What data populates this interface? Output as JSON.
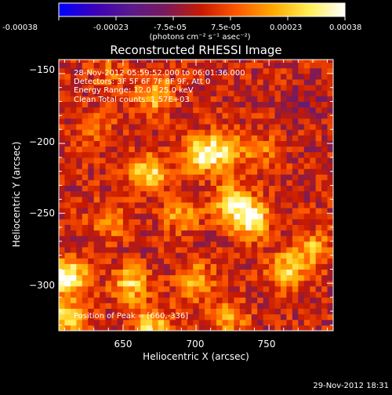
{
  "chart_data": {
    "type": "heatmap",
    "title": "Reconstructed RHESSI Image",
    "xlabel": "Heliocentric X (arcsec)",
    "ylabel": "Heliocentric Y (arcsec)",
    "xlim": [
      606,
      794
    ],
    "ylim": [
      -334,
      -140
    ],
    "x_ticks": [
      650,
      700,
      750
    ],
    "x_tick_labels": [
      "650",
      "700",
      "750"
    ],
    "y_ticks": [
      -150,
      -200,
      -250,
      -300
    ],
    "y_tick_labels": [
      "−150",
      "−200",
      "−250",
      "−300"
    ],
    "colorbar": {
      "range": [
        -0.00038,
        0.00038
      ],
      "tick_labels": [
        "-0.00038",
        "-0.00023",
        "-7.5e-05",
        "7.5e-05",
        "0.00023",
        "0.00038"
      ],
      "units": "(photons cm⁻² s⁻¹ asec⁻²)",
      "colors": [
        "#0000ff",
        "#3b00b8",
        "#5a1a8c",
        "#7a1a5a",
        "#c81a00",
        "#ff5a00",
        "#ffaa00",
        "#ffee55",
        "#ffffff"
      ]
    },
    "annotations": [
      "28-Nov-2012 05:59:52.000 to 06:01:36.000",
      "Detectors: 3F 5F 6F 7F 8F 9F, Att 0",
      "Energy Range: 12.0 - 25.0 keV",
      "Clean     Total counts: 1.57E+03"
    ],
    "peak_label": "Position of Peak = [660,-336]",
    "peak_position": [
      660,
      -336
    ],
    "hotspots": [
      {
        "x": 672,
        "y": -165,
        "intensity": 0.00024
      },
      {
        "x": 668,
        "y": -220,
        "intensity": 0.00028
      },
      {
        "x": 704,
        "y": -208,
        "intensity": 0.00032
      },
      {
        "x": 720,
        "y": -205,
        "intensity": 0.00022
      },
      {
        "x": 725,
        "y": -242,
        "intensity": 0.0003
      },
      {
        "x": 738,
        "y": -255,
        "intensity": 0.00034
      },
      {
        "x": 690,
        "y": -250,
        "intensity": 0.00018
      },
      {
        "x": 640,
        "y": -255,
        "intensity": 0.00016
      },
      {
        "x": 612,
        "y": -295,
        "intensity": 0.00038
      },
      {
        "x": 612,
        "y": -325,
        "intensity": 0.00026
      },
      {
        "x": 655,
        "y": -300,
        "intensity": 0.00026
      },
      {
        "x": 700,
        "y": -298,
        "intensity": 0.00022
      },
      {
        "x": 762,
        "y": -290,
        "intensity": 0.00026
      },
      {
        "x": 780,
        "y": -275,
        "intensity": 0.0002
      },
      {
        "x": 670,
        "y": -330,
        "intensity": 0.00026
      },
      {
        "x": 722,
        "y": -325,
        "intensity": 0.0002
      },
      {
        "x": 745,
        "y": -205,
        "intensity": 0.00012
      },
      {
        "x": 632,
        "y": -190,
        "intensity": 0.00012
      },
      {
        "x": 775,
        "y": -170,
        "intensity": -8e-05
      },
      {
        "x": 640,
        "y": -150,
        "intensity": 0.0001
      }
    ]
  },
  "footer": {
    "timestamp": "29-Nov-2012 18:31"
  }
}
